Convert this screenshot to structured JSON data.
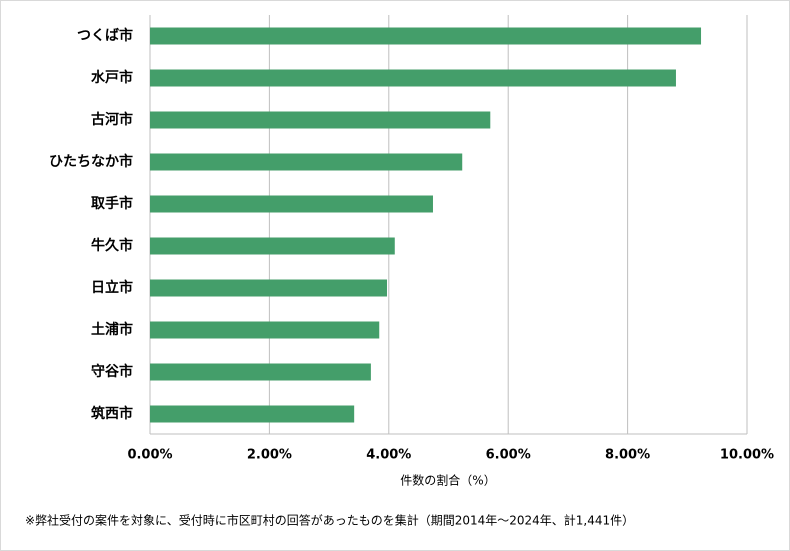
{
  "chart_data": {
    "type": "bar",
    "orientation": "horizontal",
    "categories": [
      "つくば市",
      "水戸市",
      "古河市",
      "ひたちなか市",
      "取手市",
      "牛久市",
      "日立市",
      "土浦市",
      "守谷市",
      "筑西市"
    ],
    "values": [
      9.23,
      8.81,
      5.7,
      5.23,
      4.74,
      4.1,
      3.97,
      3.84,
      3.7,
      3.42
    ],
    "color": "#449e6a",
    "xlim": [
      0,
      10
    ],
    "xticks": [
      {
        "value": 0,
        "label": "0.00%"
      },
      {
        "value": 2,
        "label": "2.00%"
      },
      {
        "value": 4,
        "label": "4.00%"
      },
      {
        "value": 6,
        "label": "6.00%"
      },
      {
        "value": 8,
        "label": "8.00%"
      },
      {
        "value": 10,
        "label": "10.00%"
      }
    ],
    "grid": true,
    "x_label": "件数の割合（%）",
    "note": "※弊社受付の案件を対象に、受付時に市区町村の回答があったものを集計（期間2014年～2024年、計1,441件）"
  }
}
